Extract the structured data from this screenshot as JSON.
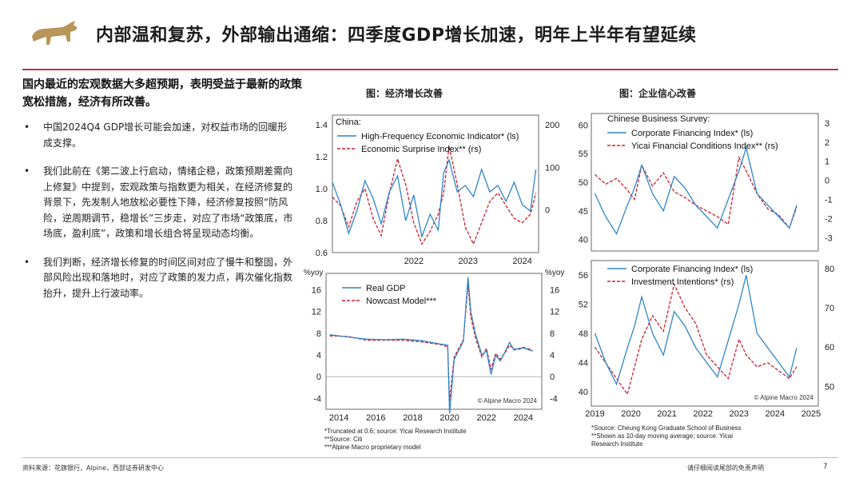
{
  "title": "内部温和复苏，外部输出通缩：四季度GDP增长加速，明年上半年有望延续",
  "lead": "国内最近的宏观数据大多超预期，表明受益于最新的政策宽松措施，经济有所改善。",
  "bullets": [
    "中国2024Q4 GDP增长可能会加速，对权益市场的回暖形成支撑。",
    "我们此前在《第二波上行启动，情绪企稳，政策预期差需向上修复》中提到，宏观政策与指数更为相关，在经济修复的背景下，先发制人地放松必要性下降，经济修复按照“防风险，逆周期调节，稳增长”三步走，对应了市场“政策底，市场底，盈利底”，政策和增长组合将呈现动态均衡。",
    "我们判断，经济增长修复的时间区间对应了慢牛和整固，外部风险出现和落地时，对应了政策的发力点，再次催化指数抬升，提升上行波动率。"
  ],
  "captions": {
    "left": "图：经济增长改善",
    "right": "图：企业信心改善"
  },
  "colors": {
    "blue": "#2f86c8",
    "red": "#c8202f",
    "accent_rule": "#b8324a"
  },
  "footer": {
    "source": "资料来源：花旗银行，Alpine，西部证券研发中心",
    "disclaimer": "请仔细阅读尾部的免责声明",
    "page": "7"
  },
  "notes": {
    "left": "*Truncated at 0.6; source: Yicai Research Institute\n**Source: Citi\n***Alpine Macro proprietary model",
    "right": "*Source: Cheung Kong Graduate School of Business\n**Shown as 10-day moving average; source: Yicai\nResearch Institute"
  },
  "chart_data": [
    {
      "type": "line",
      "title": "China:",
      "x_ticks": [
        "2022",
        "2023",
        "2024"
      ],
      "left_axis": {
        "ticks": [
          "1.4",
          "1.2",
          "1.0",
          "0.8",
          "0.6"
        ],
        "ylim": [
          0.6,
          1.4
        ]
      },
      "right_axis": {
        "ticks": [
          "200",
          "100",
          "0"
        ],
        "ylim": [
          -100,
          200
        ]
      },
      "series": [
        {
          "name": "High-Frequency Economic Indicator* (ls)",
          "axis": "left",
          "color": "#2f86c8",
          "x": [
            2021.0,
            2021.15,
            2021.3,
            2021.45,
            2021.6,
            2021.75,
            2021.9,
            2022.05,
            2022.2,
            2022.35,
            2022.5,
            2022.65,
            2022.8,
            2022.95,
            2023.05,
            2023.15,
            2023.3,
            2023.45,
            2023.6,
            2023.75,
            2023.9,
            2024.05,
            2024.2,
            2024.35,
            2024.5,
            2024.65,
            2024.75
          ],
          "y": [
            1.04,
            0.9,
            0.72,
            0.86,
            1.05,
            0.94,
            0.78,
            0.98,
            1.08,
            0.8,
            0.96,
            0.7,
            0.84,
            0.74,
            1.1,
            1.18,
            0.98,
            1.02,
            0.95,
            1.12,
            0.98,
            1.02,
            0.92,
            1.04,
            0.9,
            0.86,
            1.12
          ]
        },
        {
          "name": "Economic Surprise Index** (rs)",
          "axis": "right",
          "color": "#c8202f",
          "x": [
            2021.0,
            2021.15,
            2021.3,
            2021.45,
            2021.6,
            2021.75,
            2021.9,
            2022.05,
            2022.2,
            2022.35,
            2022.5,
            2022.65,
            2022.8,
            2022.95,
            2023.05,
            2023.15,
            2023.3,
            2023.45,
            2023.6,
            2023.75,
            2023.9,
            2024.05,
            2024.2,
            2024.35,
            2024.5,
            2024.65,
            2024.75
          ],
          "y": [
            30,
            10,
            -40,
            20,
            50,
            -20,
            -60,
            40,
            120,
            60,
            -30,
            -80,
            -50,
            -10,
            40,
            150,
            60,
            -40,
            -80,
            -30,
            20,
            40,
            10,
            -20,
            -30,
            -10,
            40
          ]
        }
      ]
    },
    {
      "type": "line",
      "title": "",
      "x_ticks": [
        "2014",
        "2016",
        "2018",
        "2020",
        "2022",
        "2024"
      ],
      "y_ticks": [
        "16",
        "12",
        "8",
        "4",
        "0",
        "-4"
      ],
      "y_unit": "%yoy",
      "ylim": [
        -6,
        19
      ],
      "series": [
        {
          "name": "Real GDP",
          "color": "#2f86c8",
          "x": [
            2013.5,
            2014.5,
            2015.5,
            2016.5,
            2017.5,
            2018.5,
            2019.5,
            2019.9,
            2020.0,
            2020.25,
            2020.5,
            2020.75,
            2021.0,
            2021.15,
            2021.4,
            2021.75,
            2022.0,
            2022.25,
            2022.5,
            2022.75,
            2023.0,
            2023.25,
            2023.5,
            2023.75,
            2024.0,
            2024.5
          ],
          "y": [
            7.7,
            7.3,
            6.9,
            6.8,
            6.9,
            6.6,
            6.0,
            5.8,
            -6.8,
            3.2,
            4.9,
            6.5,
            18.3,
            12.0,
            7.9,
            4.0,
            4.8,
            0.4,
            3.9,
            2.9,
            4.5,
            6.3,
            4.9,
            5.2,
            5.3,
            4.7
          ]
        },
        {
          "name": "Nowcast Model***",
          "color": "#c8202f",
          "x": [
            2013.5,
            2014.5,
            2015.5,
            2016.5,
            2017.5,
            2018.5,
            2019.5,
            2019.9,
            2020.0,
            2020.25,
            2020.5,
            2020.75,
            2021.0,
            2021.15,
            2021.4,
            2021.75,
            2022.0,
            2022.25,
            2022.5,
            2022.75,
            2023.0,
            2023.25,
            2023.5,
            2023.75,
            2024.0,
            2024.5
          ],
          "y": [
            7.5,
            7.4,
            6.7,
            6.7,
            6.7,
            6.4,
            5.9,
            5.5,
            -4.5,
            3.6,
            5.2,
            6.8,
            17.0,
            11.0,
            7.2,
            3.6,
            5.2,
            1.3,
            4.3,
            3.2,
            4.3,
            5.8,
            5.1,
            5.0,
            5.4,
            4.9
          ]
        }
      ]
    },
    {
      "type": "line",
      "title": "Chinese Business Survey:",
      "left_axis": {
        "ticks": [
          "60",
          "55",
          "50",
          "45",
          "40"
        ],
        "ylim": [
          38,
          62
        ]
      },
      "right_axis": {
        "ticks": [
          "3",
          "2",
          "1",
          "0",
          "-1",
          "-2",
          "-3"
        ],
        "ylim": [
          -3.7,
          3.5
        ]
      },
      "series": [
        {
          "name": "Corporate Financing Index* (ls)",
          "axis": "left",
          "color": "#2f86c8",
          "x": [
            2019.0,
            2019.3,
            2019.6,
            2019.9,
            2020.1,
            2020.3,
            2020.6,
            2020.9,
            2021.2,
            2021.5,
            2021.8,
            2022.1,
            2022.4,
            2022.7,
            2023.0,
            2023.2,
            2023.5,
            2023.8,
            2024.1,
            2024.4,
            2024.6
          ],
          "y": [
            48,
            44,
            41,
            46,
            49,
            53,
            48,
            45,
            51,
            49,
            46,
            44,
            42,
            47,
            52,
            56,
            48,
            46,
            44,
            42,
            46
          ]
        },
        {
          "name": "Yicai Financial Conditions Index** (rs)",
          "axis": "right",
          "color": "#c8202f",
          "x": [
            2019.0,
            2019.3,
            2019.6,
            2019.9,
            2020.1,
            2020.3,
            2020.6,
            2020.9,
            2021.2,
            2021.5,
            2021.8,
            2022.1,
            2022.4,
            2022.7,
            2023.0,
            2023.2,
            2023.5,
            2023.8,
            2024.1,
            2024.4,
            2024.6
          ],
          "y": [
            0.3,
            -0.2,
            0.1,
            -0.5,
            -1.0,
            0.8,
            -0.3,
            0.4,
            -0.6,
            -0.9,
            -1.3,
            -1.6,
            -1.9,
            -2.3,
            1.2,
            0.5,
            -0.7,
            -1.5,
            -1.8,
            -2.5,
            -1.4
          ]
        }
      ]
    },
    {
      "type": "line",
      "title": "",
      "x_ticks": [
        "2019",
        "2020",
        "2021",
        "2022",
        "2023",
        "2024",
        "2025"
      ],
      "left_axis": {
        "ticks": [
          "56",
          "52",
          "48",
          "44",
          "40"
        ],
        "ylim": [
          38,
          58
        ]
      },
      "right_axis": {
        "ticks": [
          "80",
          "70",
          "60",
          "50"
        ],
        "ylim": [
          45,
          82
        ]
      },
      "series": [
        {
          "name": "Corporate Financing Index* (ls)",
          "axis": "left",
          "color": "#2f86c8",
          "x": [
            2019.0,
            2019.3,
            2019.6,
            2019.9,
            2020.1,
            2020.3,
            2020.6,
            2020.9,
            2021.2,
            2021.5,
            2021.8,
            2022.1,
            2022.4,
            2022.7,
            2023.0,
            2023.2,
            2023.5,
            2023.8,
            2024.1,
            2024.4,
            2024.6
          ],
          "y": [
            48,
            44,
            41,
            46,
            49,
            53,
            48,
            45,
            51,
            49,
            46,
            44,
            42,
            47,
            52,
            56,
            48,
            46,
            44,
            42,
            46
          ]
        },
        {
          "name": "Investment Intentions* (rs)",
          "axis": "right",
          "color": "#c8202f",
          "x": [
            2019.0,
            2019.3,
            2019.6,
            2019.9,
            2020.1,
            2020.3,
            2020.6,
            2020.9,
            2021.2,
            2021.5,
            2021.8,
            2022.1,
            2022.4,
            2022.7,
            2023.0,
            2023.2,
            2023.5,
            2023.8,
            2024.1,
            2024.4,
            2024.6
          ],
          "y": [
            60,
            56,
            52,
            48,
            55,
            62,
            68,
            64,
            76,
            70,
            66,
            58,
            55,
            52,
            62,
            58,
            55,
            56,
            54,
            52,
            55
          ]
        }
      ]
    }
  ],
  "watermarks": [
    "© Alpine Macro 2024",
    "© Alpine Macro 2024"
  ]
}
